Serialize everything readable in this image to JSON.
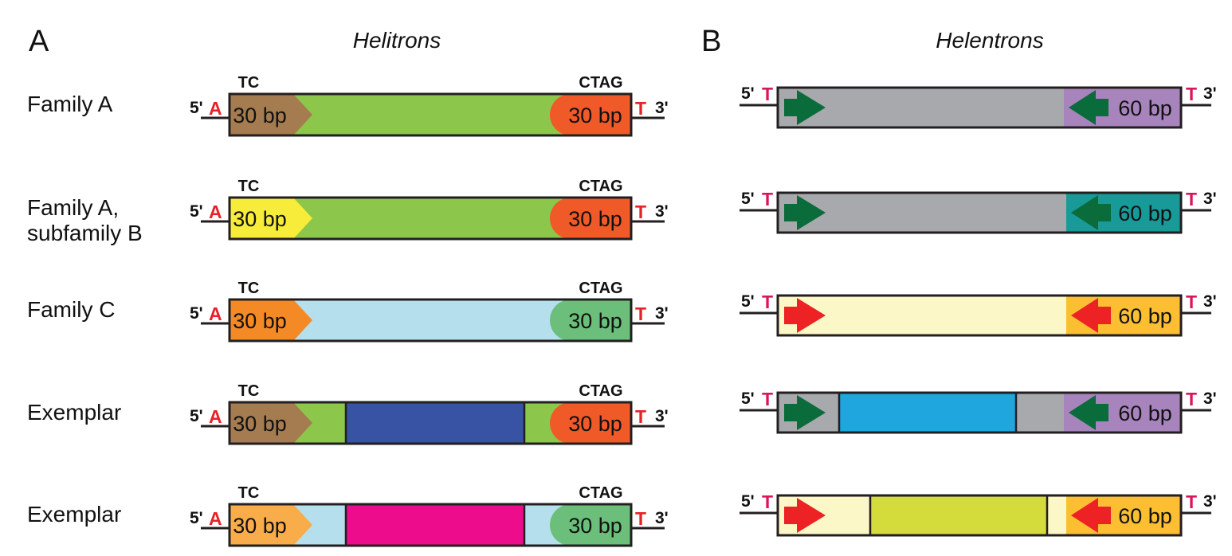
{
  "panel_a": {
    "letter": "A",
    "title": "Helitrons",
    "rows": [
      {
        "label_line1": "Family A",
        "label_line2": "",
        "five": "5'",
        "five_nt": "A",
        "three": "3'",
        "three_nt": "T",
        "left_motif": "TC",
        "right_motif": "CTAG",
        "left_bp": "30 bp",
        "right_bp": "30 bp",
        "left_color": "#a57b50",
        "body_color": "#8cc74b",
        "right_color": "#f05a28",
        "insert_color": ""
      },
      {
        "label_line1": "Family A,",
        "label_line2": "subfamily B",
        "five": "5'",
        "five_nt": "A",
        "three": "3'",
        "three_nt": "T",
        "left_motif": "TC",
        "right_motif": "CTAG",
        "left_bp": "30 bp",
        "right_bp": "30 bp",
        "left_color": "#f7ec3a",
        "body_color": "#8cc74b",
        "right_color": "#f05a28",
        "insert_color": ""
      },
      {
        "label_line1": "Family C",
        "label_line2": "",
        "five": "5'",
        "five_nt": "A",
        "three": "3'",
        "three_nt": "T",
        "left_motif": "TC",
        "right_motif": "CTAG",
        "left_bp": "30 bp",
        "right_bp": "30 bp",
        "left_color": "#f48a26",
        "body_color": "#b5dfec",
        "right_color": "#6bbf7a",
        "insert_color": ""
      },
      {
        "label_line1": "Exemplar",
        "label_line2": "",
        "five": "5'",
        "five_nt": "A",
        "three": "3'",
        "three_nt": "T",
        "left_motif": "TC",
        "right_motif": "CTAG",
        "left_bp": "30 bp",
        "right_bp": "30 bp",
        "left_color": "#a57b50",
        "body_color": "#8cc74b",
        "right_color": "#f05a28",
        "insert_color": "#3853a3"
      },
      {
        "label_line1": "Exemplar",
        "label_line2": "",
        "five": "5'",
        "five_nt": "A",
        "three": "3'",
        "three_nt": "T",
        "left_motif": "TC",
        "right_motif": "CTAG",
        "left_bp": "30 bp",
        "right_bp": "30 bp",
        "left_color": "#f9ac4a",
        "body_color": "#b5dfec",
        "right_color": "#6bbf7a",
        "insert_color": "#ec0c8c"
      }
    ]
  },
  "panel_b": {
    "letter": "B",
    "title": "Helentrons",
    "rows": [
      {
        "five": "5'",
        "five_nt": "T",
        "three": "3'",
        "three_nt": "T",
        "bp": "60 bp",
        "body_color": "#a7a9ac",
        "end_color": "#a884bd",
        "arrow_color": "#0a6b3b",
        "insert_color": ""
      },
      {
        "five": "5'",
        "five_nt": "T",
        "three": "3'",
        "three_nt": "T",
        "bp": "60 bp",
        "body_color": "#a7a9ac",
        "end_color": "#189a98",
        "arrow_color": "#0a6b3b",
        "insert_color": ""
      },
      {
        "five": "5'",
        "five_nt": "T",
        "three": "3'",
        "three_nt": "T",
        "bp": "60 bp",
        "body_color": "#fcf7c6",
        "end_color": "#fbbf31",
        "arrow_color": "#ec2224",
        "insert_color": ""
      },
      {
        "five": "5'",
        "five_nt": "T",
        "three": "3'",
        "three_nt": "T",
        "bp": "60 bp",
        "body_color": "#a7a9ac",
        "end_color": "#a884bd",
        "arrow_color": "#0a6b3b",
        "insert_color": "#1fa6df"
      },
      {
        "five": "5'",
        "five_nt": "T",
        "three": "3'",
        "three_nt": "T",
        "bp": "60 bp",
        "body_color": "#fcf7c6",
        "end_color": "#fbbf31",
        "arrow_color": "#ec2224",
        "insert_color": "#d3dc3a"
      }
    ]
  }
}
